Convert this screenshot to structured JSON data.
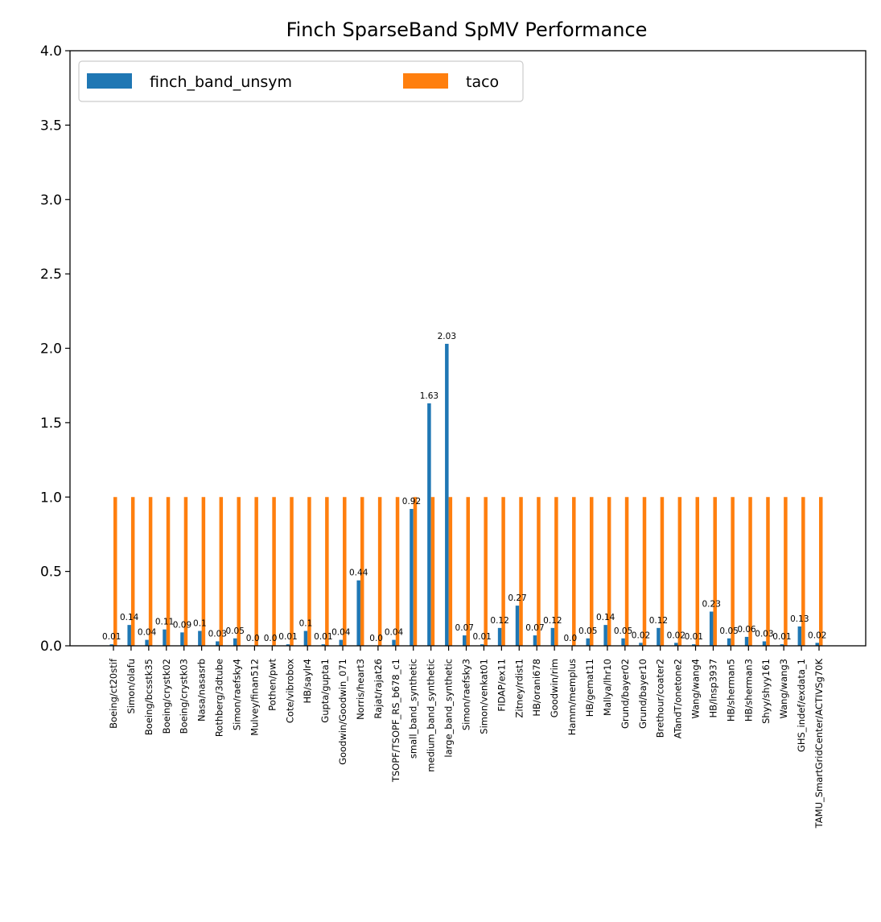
{
  "chart_data": {
    "type": "bar",
    "title": "Finch SparseBand SpMV Performance",
    "xlabel": "",
    "ylabel": "",
    "ylim": [
      0,
      4.0
    ],
    "yticks": [
      "0.0",
      "0.5",
      "1.0",
      "1.5",
      "2.0",
      "2.5",
      "3.0",
      "3.5",
      "4.0"
    ],
    "ytick_values": [
      0,
      0.5,
      1.0,
      1.5,
      2.0,
      2.5,
      3.0,
      3.5,
      4.0
    ],
    "legend": {
      "placement": "upper-left",
      "columns": 2
    },
    "grid": false,
    "categories": [
      "Boeing/ct20stif",
      "Simon/olafu",
      "Boeing/bcsstk35",
      "Boeing/crystk02",
      "Boeing/crystk03",
      "Nasa/nasasrb",
      "Rothberg/3dtube",
      "Simon/raefsky4",
      "Mulvey/finan512",
      "Pothen/pwt",
      "Cote/vibrobox",
      "HB/saylr4",
      "Gupta/gupta1",
      "Goodwin/Goodwin_071",
      "Norris/heart3",
      "Rajat/rajat26",
      "TSOPF/TSOPF_RS_b678_c1",
      "small_band_synthetic",
      "medium_band_synthetic",
      "large_band_synthetic",
      "Simon/raefsky3",
      "Simon/venkat01",
      "FIDAP/ex11",
      "Zitney/rdist1",
      "HB/orani678",
      "Goodwin/rim",
      "Hamm/memplus",
      "HB/gemat11",
      "Mallya/lhr10",
      "Grund/bayer02",
      "Grund/bayer10",
      "Brethour/coater2",
      "ATandT/onetone2",
      "Wang/wang4",
      "HB/lnsp3937",
      "HB/sherman5",
      "HB/sherman3",
      "Shyy/shyy161",
      "Wang/wang3",
      "GHS_indef/exdata_1",
      "TAMU_SmartGridCenter/ACTIVSg70K"
    ],
    "series": [
      {
        "name": "finch_band_unsym",
        "color": "#1f77b4",
        "values": [
          0.01,
          0.14,
          0.04,
          0.11,
          0.09,
          0.1,
          0.03,
          0.05,
          0.0,
          0.0,
          0.01,
          0.1,
          0.01,
          0.04,
          0.44,
          0.0,
          0.04,
          0.92,
          1.63,
          2.03,
          0.07,
          0.01,
          0.12,
          0.27,
          0.07,
          0.12,
          0.0,
          0.05,
          0.14,
          0.05,
          0.02,
          0.12,
          0.02,
          0.01,
          0.23,
          0.05,
          0.06,
          0.03,
          0.01,
          0.13,
          0.02
        ],
        "labels": [
          "0.01",
          "0.14",
          "0.04",
          "0.11",
          "0.09",
          "0.1",
          "0.03",
          "0.05",
          "0.0",
          "0.0",
          "0.01",
          "0.1",
          "0.01",
          "0.04",
          "0.44",
          "0.0",
          "0.04",
          "0.92",
          "1.63",
          "2.03",
          "0.07",
          "0.01",
          "0.12",
          "0.27",
          "0.07",
          "0.12",
          "0.0",
          "0.05",
          "0.14",
          "0.05",
          "0.02",
          "0.12",
          "0.02",
          "0.01",
          "0.23",
          "0.05",
          "0.06",
          "0.03",
          "0.01",
          "0.13",
          "0.02"
        ]
      },
      {
        "name": "taco",
        "color": "#ff7f0e",
        "values": [
          1.0,
          1.0,
          1.0,
          1.0,
          1.0,
          1.0,
          1.0,
          1.0,
          1.0,
          1.0,
          1.0,
          1.0,
          1.0,
          1.0,
          1.0,
          1.0,
          1.0,
          1.0,
          1.0,
          1.0,
          1.0,
          1.0,
          1.0,
          1.0,
          1.0,
          1.0,
          1.0,
          1.0,
          1.0,
          1.0,
          1.0,
          1.0,
          1.0,
          1.0,
          1.0,
          1.0,
          1.0,
          1.0,
          1.0,
          1.0,
          1.0
        ]
      }
    ]
  }
}
